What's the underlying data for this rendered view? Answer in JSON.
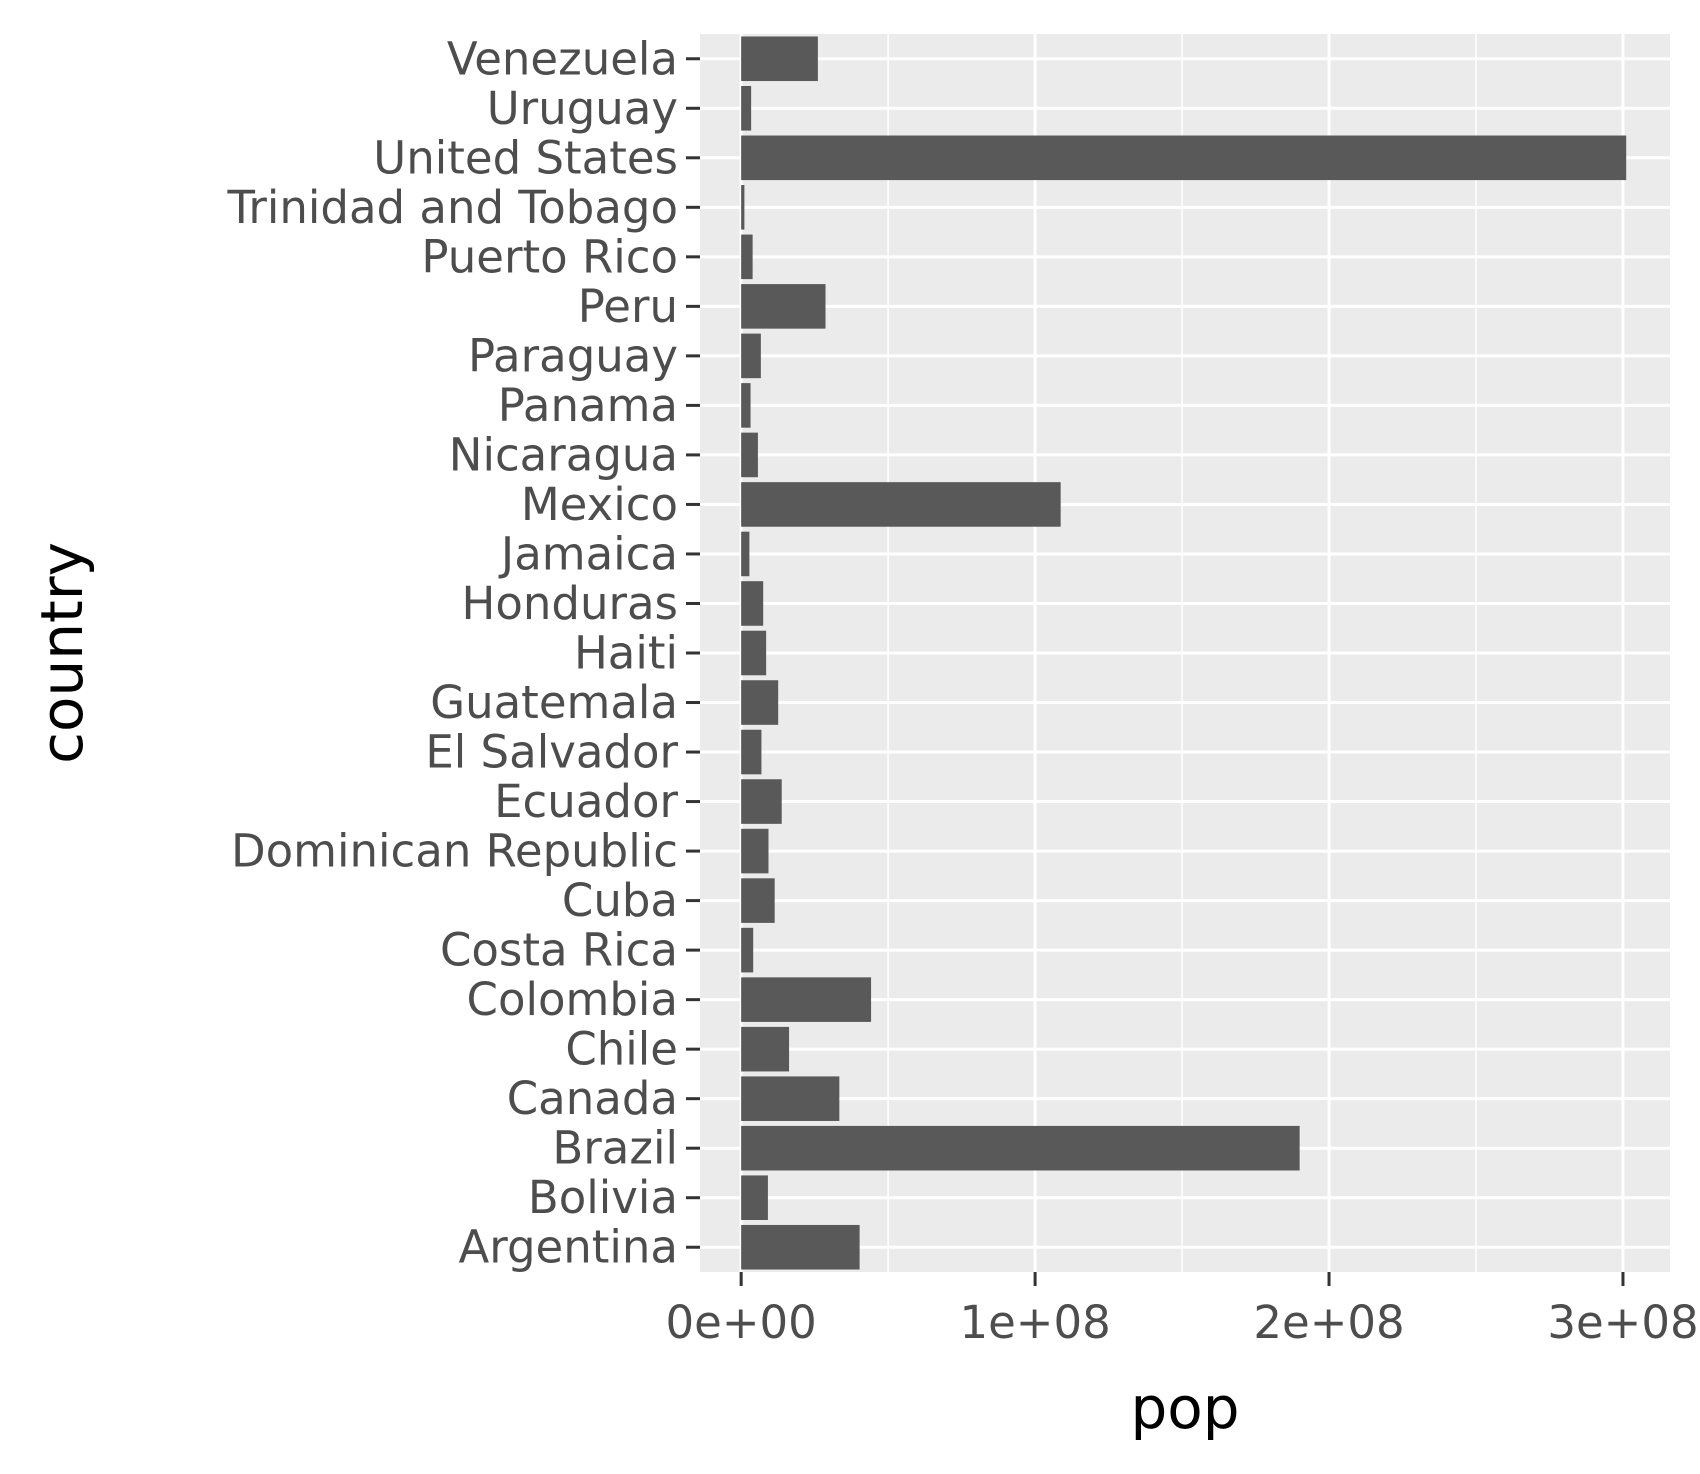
{
  "chart_data": {
    "type": "bar",
    "orientation": "horizontal",
    "categories": [
      "Argentina",
      "Bolivia",
      "Brazil",
      "Canada",
      "Chile",
      "Colombia",
      "Costa Rica",
      "Cuba",
      "Dominican Republic",
      "Ecuador",
      "El Salvador",
      "Guatemala",
      "Haiti",
      "Honduras",
      "Jamaica",
      "Mexico",
      "Nicaragua",
      "Panama",
      "Paraguay",
      "Peru",
      "Puerto Rico",
      "Trinidad and Tobago",
      "United States",
      "Uruguay",
      "Venezuela"
    ],
    "values": [
      40300000,
      9100000,
      190000000,
      33400000,
      16300000,
      44200000,
      4100000,
      11400000,
      9300000,
      13800000,
      6900000,
      12600000,
      8500000,
      7500000,
      2800000,
      108700000,
      5700000,
      3200000,
      6700000,
      28700000,
      3900000,
      1100000,
      301100000,
      3400000,
      26100000
    ],
    "title": "",
    "xlabel": "pop",
    "ylabel": "country",
    "xlim": [
      -14000000,
      316000000
    ],
    "x_ticks": [
      0,
      100000000,
      200000000,
      300000000
    ],
    "x_tick_labels": [
      "0e+00",
      "1e+08",
      "2e+08",
      "3e+08"
    ],
    "grid": true,
    "colors": {
      "panel_background": "#ebebeb",
      "grid_line": "#ffffff",
      "bar_fill": "#595959",
      "tick_mark": "#333333",
      "tick_label": "#4d4d4d",
      "axis_title": "#000000"
    }
  }
}
